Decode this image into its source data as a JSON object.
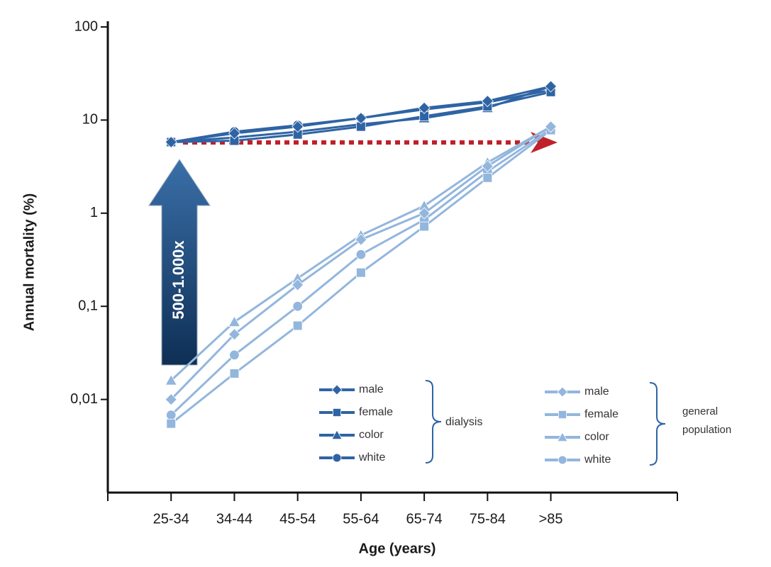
{
  "chart_data": {
    "type": "line",
    "y_label": "Annual mortality (%)",
    "x_label": "Age (years)",
    "categories": [
      "25-34",
      "34-44",
      "45-54",
      "55-64",
      "65-74",
      "75-84",
      ">85"
    ],
    "y_scale": "log",
    "ylim": [
      0.001,
      100
    ],
    "yticks": [
      {
        "value": 0.01,
        "label": "0,01"
      },
      {
        "value": 0.1,
        "label": "0,1"
      },
      1,
      10,
      100
    ],
    "legend_groups": [
      {
        "label": "dialysis",
        "series": [
          0,
          1,
          2,
          3
        ]
      },
      {
        "label": "general population",
        "series": [
          4,
          5,
          6,
          7
        ]
      }
    ],
    "annotation": "500-1.000x",
    "series": [
      {
        "name": "male",
        "color": "#2f64a4",
        "marker": "diamond",
        "values": [
          5.8,
          7.2,
          8.5,
          10.5,
          13.5,
          16,
          23
        ]
      },
      {
        "name": "female",
        "color": "#2f64a4",
        "marker": "square",
        "values": [
          5.8,
          6,
          7,
          8.5,
          11,
          14,
          20
        ]
      },
      {
        "name": "color",
        "color": "#2f64a4",
        "marker": "triangle",
        "values": [
          5.8,
          6.5,
          7.5,
          9,
          10.5,
          13.5,
          23
        ]
      },
      {
        "name": "white",
        "color": "#2f64a4",
        "marker": "circle",
        "values": [
          5.8,
          7.5,
          8.8,
          10.5,
          13,
          15.5,
          21
        ]
      },
      {
        "name": "male",
        "color": "#93b6dd",
        "marker": "diamond",
        "values": [
          0.01,
          0.05,
          0.17,
          0.52,
          1.0,
          3.2,
          8.5
        ]
      },
      {
        "name": "female",
        "color": "#93b6dd",
        "marker": "square",
        "values": [
          0.0055,
          0.019,
          0.062,
          0.23,
          0.72,
          2.4,
          7.8
        ]
      },
      {
        "name": "color",
        "color": "#93b6dd",
        "marker": "triangle",
        "values": [
          0.016,
          0.068,
          0.2,
          0.58,
          1.2,
          3.5,
          8.5
        ]
      },
      {
        "name": "white",
        "color": "#93b6dd",
        "marker": "circle",
        "values": [
          0.0068,
          0.03,
          0.1,
          0.36,
          0.85,
          2.8,
          8
        ]
      }
    ]
  }
}
